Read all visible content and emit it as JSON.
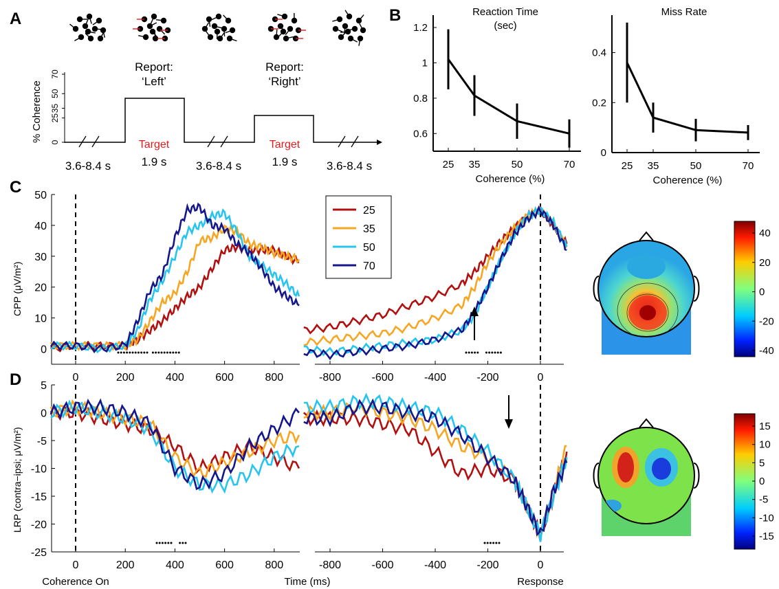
{
  "panel_labels": [
    "A",
    "B",
    "C",
    "D"
  ],
  "panelA": {
    "ylabel": "% Coherence",
    "yticks": [
      "0",
      "25",
      "35",
      "50",
      "70"
    ],
    "reports": [
      [
        "Report:",
        "‘Left’"
      ],
      [
        "Report:",
        "‘Right’"
      ]
    ],
    "target_label": "Target",
    "durations": [
      "3.6-8.4 s",
      "1.9 s",
      "3.6-8.4 s",
      "1.9 s",
      "3.6-8.4 s"
    ]
  },
  "colors": {
    "c25": "#b01010",
    "c35": "#f5a623",
    "c50": "#27c4ee",
    "c70": "#14168a",
    "red": "#e41a1c"
  },
  "legend": [
    {
      "label": "25",
      "color": "#b01010"
    },
    {
      "label": "35",
      "color": "#f5a623"
    },
    {
      "label": "50",
      "color": "#27c4ee"
    },
    {
      "label": "70",
      "color": "#14168a"
    }
  ],
  "chart_data": [
    {
      "type": "line",
      "panel": "B",
      "title": "Reaction Time",
      "subtitle": "(sec)",
      "xlabel": "Coherence (%)",
      "categories": [
        "25",
        "35",
        "50",
        "70"
      ],
      "values": [
        1.02,
        0.815,
        0.67,
        0.6
      ],
      "errors": [
        0.17,
        0.115,
        0.1,
        0.08
      ],
      "yticks": [
        "0.6",
        "0.8",
        "1",
        "1.2"
      ],
      "ylim": [
        0.5,
        1.27
      ]
    },
    {
      "type": "line",
      "panel": "B",
      "title": "Miss Rate",
      "xlabel": "Coherence (%)",
      "categories": [
        "25",
        "35",
        "50",
        "70"
      ],
      "values": [
        0.36,
        0.14,
        0.09,
        0.08
      ],
      "errors": [
        0.16,
        0.06,
        0.045,
        0.03
      ],
      "yticks": [
        "0",
        "0.2",
        "0.4"
      ],
      "ylim": [
        0,
        0.55
      ]
    },
    {
      "type": "line",
      "panel": "C",
      "ylabel": "CPP (μV/m²)",
      "yticks": [
        "0",
        "10",
        "20",
        "30",
        "40",
        "50"
      ],
      "xticks_stim": [
        "0",
        "200",
        "400",
        "600",
        "800"
      ],
      "xticks_resp": [
        "-800",
        "-600",
        "-400",
        "-200",
        "0"
      ],
      "stim_series": [
        {
          "name": "25",
          "x": [
            -100,
            0,
            100,
            200,
            250,
            300,
            350,
            400,
            450,
            500,
            550,
            600,
            650,
            700,
            750,
            800,
            850,
            900
          ],
          "y": [
            0,
            1,
            1,
            1,
            3,
            6,
            9,
            13,
            17,
            20,
            26,
            32,
            33,
            32,
            32,
            32,
            30,
            28
          ]
        },
        {
          "name": "35",
          "x": [
            -100,
            0,
            100,
            200,
            250,
            300,
            350,
            400,
            450,
            500,
            550,
            600,
            650,
            700,
            750,
            800,
            850,
            900
          ],
          "y": [
            1,
            1,
            1,
            1,
            3,
            9,
            15,
            18,
            25,
            35,
            36,
            39,
            38,
            34,
            33,
            31,
            30,
            29
          ]
        },
        {
          "name": "50",
          "x": [
            -100,
            0,
            100,
            200,
            250,
            300,
            350,
            400,
            450,
            500,
            550,
            600,
            650,
            700,
            750,
            800,
            850,
            900
          ],
          "y": [
            1,
            1,
            0,
            1,
            6,
            16,
            22,
            30,
            38,
            40,
            43,
            44,
            38,
            30,
            27,
            24,
            21,
            17
          ]
        },
        {
          "name": "70",
          "x": [
            -100,
            0,
            100,
            200,
            250,
            300,
            350,
            400,
            450,
            500,
            550,
            600,
            650,
            700,
            750,
            800,
            850,
            900
          ],
          "y": [
            1,
            1,
            0,
            1,
            9,
            19,
            24,
            36,
            45,
            46,
            40,
            39,
            34,
            31,
            26,
            20,
            17,
            14
          ]
        }
      ],
      "resp_series": [
        {
          "name": "25",
          "x": [
            -900,
            -800,
            -700,
            -600,
            -500,
            -400,
            -300,
            -250,
            -200,
            -150,
            -100,
            -50,
            0,
            50,
            100
          ],
          "y": [
            6,
            7,
            9,
            11,
            14,
            17,
            21,
            25,
            30,
            35,
            39,
            43,
            45,
            40,
            34
          ]
        },
        {
          "name": "35",
          "x": [
            -900,
            -800,
            -700,
            -600,
            -500,
            -400,
            -300,
            -250,
            -200,
            -150,
            -100,
            -50,
            0,
            50,
            100
          ],
          "y": [
            2,
            3,
            4,
            5,
            7,
            10,
            14,
            20,
            28,
            34,
            39,
            43,
            45,
            40,
            33
          ]
        },
        {
          "name": "50",
          "x": [
            -900,
            -800,
            -700,
            -600,
            -500,
            -400,
            -300,
            -250,
            -200,
            -150,
            -100,
            -50,
            0,
            50,
            100
          ],
          "y": [
            0,
            -1,
            0,
            1,
            2,
            3,
            6,
            11,
            20,
            29,
            37,
            43,
            45,
            41,
            33
          ]
        },
        {
          "name": "70",
          "x": [
            -900,
            -800,
            -700,
            -600,
            -500,
            -400,
            -300,
            -250,
            -200,
            -150,
            -100,
            -50,
            0,
            50,
            100
          ],
          "y": [
            -1,
            -2,
            -1,
            0,
            1,
            3,
            6,
            12,
            20,
            29,
            37,
            42,
            45,
            40,
            32
          ]
        }
      ]
    },
    {
      "type": "line",
      "panel": "D",
      "ylabel": "LRP (contra−ipsi; μV/m²)",
      "xlabel": "Time (ms)",
      "yticks": [
        "-25",
        "-20",
        "-15",
        "-10",
        "-5",
        "0",
        "5"
      ],
      "xticks_stim": [
        "0",
        "200",
        "400",
        "600",
        "800"
      ],
      "xticks_resp": [
        "-800",
        "-600",
        "-400",
        "-200",
        "0"
      ],
      "stim_series": [
        {
          "name": "25",
          "x": [
            -100,
            0,
            100,
            200,
            300,
            400,
            500,
            600,
            700,
            800,
            900
          ],
          "y": [
            0,
            0,
            -1,
            -2,
            -3,
            -6,
            -10,
            -8,
            -6,
            -8,
            -10
          ]
        },
        {
          "name": "35",
          "x": [
            -100,
            0,
            100,
            200,
            300,
            400,
            500,
            600,
            700,
            800,
            900
          ],
          "y": [
            0,
            1,
            0,
            -1,
            -2,
            -8,
            -11,
            -9,
            -7,
            -5,
            -4
          ]
        },
        {
          "name": "50",
          "x": [
            -100,
            0,
            100,
            200,
            300,
            400,
            500,
            600,
            700,
            800,
            900
          ],
          "y": [
            0,
            1,
            0,
            -1,
            -3,
            -10,
            -13,
            -13,
            -11,
            -8,
            -6
          ]
        },
        {
          "name": "70",
          "x": [
            -100,
            0,
            100,
            200,
            300,
            400,
            500,
            600,
            700,
            800,
            900
          ],
          "y": [
            0,
            1,
            1,
            0,
            -2,
            -10,
            -13,
            -11,
            -6,
            -3,
            0
          ]
        }
      ],
      "resp_series": [
        {
          "name": "25",
          "x": [
            -900,
            -800,
            -700,
            -600,
            -500,
            -400,
            -300,
            -200,
            -100,
            -50,
            0,
            50,
            100
          ],
          "y": [
            -1,
            -1,
            -1,
            -2,
            -3,
            -7,
            -11,
            -10,
            -12,
            -17,
            -22,
            -15,
            -7
          ]
        },
        {
          "name": "35",
          "x": [
            -900,
            -800,
            -700,
            -600,
            -500,
            -400,
            -300,
            -200,
            -100,
            -50,
            0,
            50,
            100
          ],
          "y": [
            0,
            0,
            1,
            0,
            -1,
            -3,
            -6,
            -8,
            -12,
            -17,
            -22,
            -14,
            -6
          ]
        },
        {
          "name": "50",
          "x": [
            -900,
            -800,
            -700,
            -600,
            -500,
            -400,
            -300,
            -200,
            -100,
            -50,
            0,
            50,
            100
          ],
          "y": [
            1,
            1,
            2,
            2,
            1,
            0,
            -3,
            -7,
            -12,
            -17,
            -22,
            -15,
            -8
          ]
        },
        {
          "name": "70",
          "x": [
            -900,
            -800,
            -700,
            -600,
            -500,
            -400,
            -300,
            -200,
            -100,
            -50,
            0,
            50,
            100
          ],
          "y": [
            -1,
            -1,
            1,
            1,
            0,
            -1,
            -4,
            -8,
            -12,
            -17,
            -22,
            -14,
            -9
          ]
        }
      ]
    }
  ],
  "colorbars": [
    {
      "ticks": [
        "40",
        "20",
        "0",
        "-20",
        "-40"
      ]
    },
    {
      "ticks": [
        "15",
        "10",
        "5",
        "0",
        "-5",
        "-10",
        "-15"
      ]
    }
  ],
  "bottom_labels": {
    "left": "Coherence On",
    "center": "Time (ms)",
    "right": "Response"
  }
}
